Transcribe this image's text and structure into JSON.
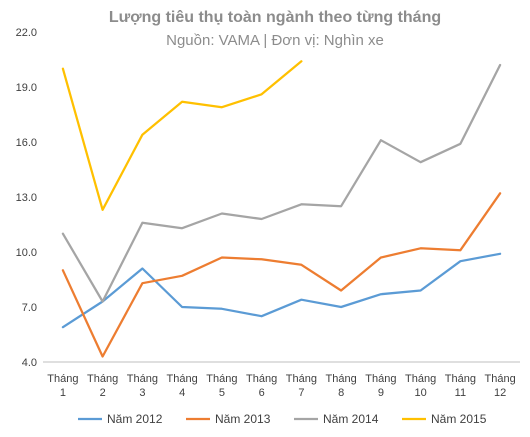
{
  "chart_data": {
    "type": "line",
    "title": "Lượng tiêu thụ toàn ngành theo từng tháng",
    "subtitle": "Nguồn: VAMA | Đơn vị: Nghìn xe",
    "categories": [
      [
        "Tháng",
        "1"
      ],
      [
        "Tháng",
        "2"
      ],
      [
        "Tháng",
        "3"
      ],
      [
        "Tháng",
        "4"
      ],
      [
        "Tháng",
        "5"
      ],
      [
        "Tháng",
        "6"
      ],
      [
        "Tháng",
        "7"
      ],
      [
        "Tháng",
        "8"
      ],
      [
        "Tháng",
        "9"
      ],
      [
        "Tháng",
        "10"
      ],
      [
        "Tháng",
        "11"
      ],
      [
        "Tháng",
        "12"
      ]
    ],
    "ylim": [
      4.0,
      22.0
    ],
    "yticks": [
      "4.0",
      "7.0",
      "10.0",
      "13.0",
      "16.0",
      "19.0",
      "22.0"
    ],
    "ytick_values": [
      4,
      7,
      10,
      13,
      16,
      19,
      22
    ],
    "grid": false,
    "legend": "bottom",
    "series": [
      {
        "name": "Năm 2012",
        "color": "#5b9bd5",
        "values": [
          5.9,
          7.3,
          9.1,
          7.0,
          6.9,
          6.5,
          7.4,
          7.0,
          7.7,
          7.9,
          9.5,
          9.9
        ]
      },
      {
        "name": "Năm 2013",
        "color": "#ed7d31",
        "values": [
          9.0,
          4.3,
          8.3,
          8.7,
          9.7,
          9.6,
          9.3,
          7.9,
          9.7,
          10.2,
          10.1,
          13.2
        ]
      },
      {
        "name": "Năm 2014",
        "color": "#a5a5a5",
        "values": [
          11.0,
          7.3,
          11.6,
          11.3,
          12.1,
          11.8,
          12.6,
          12.5,
          16.1,
          14.9,
          15.9,
          20.2
        ]
      },
      {
        "name": "Năm 2015",
        "color": "#ffc000",
        "values": [
          20.0,
          12.3,
          16.4,
          18.2,
          17.9,
          18.6,
          20.4,
          null,
          null,
          null,
          null,
          null
        ]
      }
    ]
  }
}
